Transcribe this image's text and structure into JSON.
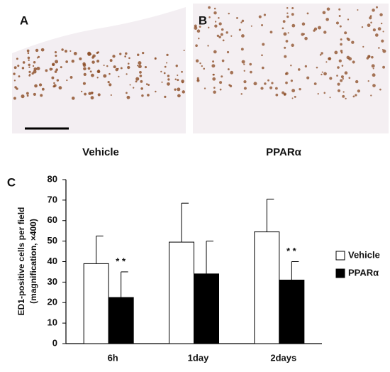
{
  "panels": {
    "a": {
      "label": "A",
      "caption": "Vehicle"
    },
    "b": {
      "label": "B",
      "caption": "PPARα"
    },
    "c": {
      "label": "C"
    }
  },
  "chart_data": {
    "type": "bar",
    "y_label": [
      "ED1-positive cells per field",
      "(magnification, ×400)"
    ],
    "categories": [
      "6h",
      "1day",
      "2days"
    ],
    "series": [
      {
        "name": "Vehicle",
        "color": "#ffffff",
        "values": [
          39,
          49.5,
          54.5
        ],
        "errors": [
          13.5,
          19,
          16
        ]
      },
      {
        "name": "PPARα",
        "color": "#000000",
        "values": [
          22.5,
          34,
          31
        ],
        "errors": [
          12.5,
          16,
          9
        ]
      }
    ],
    "annotations": [
      {
        "text": "* *",
        "x": "6h"
      },
      {
        "text": "* *",
        "x": "2days"
      }
    ],
    "ylim": [
      0,
      80
    ],
    "yticks": [
      0,
      10,
      20,
      30,
      40,
      50,
      60,
      70,
      80
    ],
    "legend": "right"
  }
}
